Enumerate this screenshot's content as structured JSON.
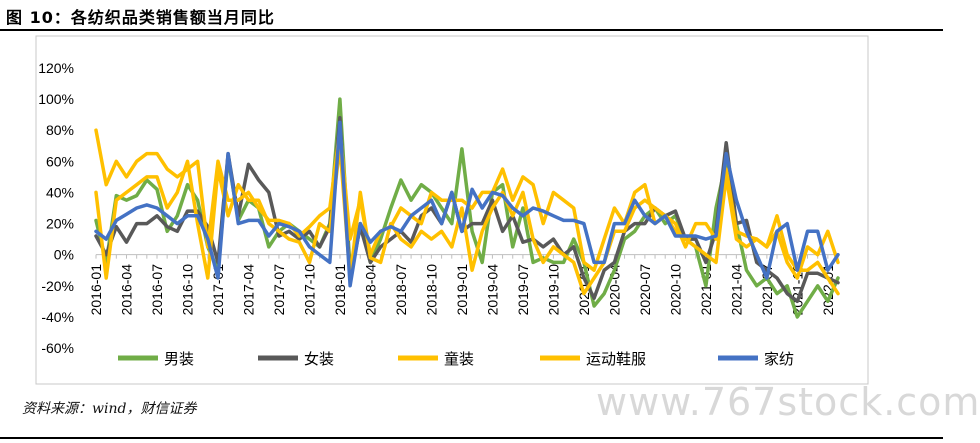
{
  "page": {
    "title": "图 10：各纺织品类销售额当月同比",
    "source": "资料来源：wind，财信证券",
    "watermark": "www.767stock.com"
  },
  "chart_data": {
    "type": "line",
    "title": "",
    "xlabel": "",
    "ylabel": "",
    "ylim": [
      -60,
      120
    ],
    "y_ticks": [
      -60,
      -40,
      -20,
      0,
      20,
      40,
      60,
      80,
      100,
      120
    ],
    "y_tick_labels": [
      "-60%",
      "-40%",
      "-20%",
      "0%",
      "20%",
      "40%",
      "60%",
      "80%",
      "100%",
      "120%"
    ],
    "x": [
      "2016-01",
      "2016-02",
      "2016-03",
      "2016-04",
      "2016-05",
      "2016-06",
      "2016-07",
      "2016-08",
      "2016-09",
      "2016-10",
      "2016-11",
      "2016-12",
      "2017-01",
      "2017-02",
      "2017-03",
      "2017-04",
      "2017-05",
      "2017-06",
      "2017-07",
      "2017-08",
      "2017-09",
      "2017-10",
      "2017-11",
      "2017-12",
      "2018-01",
      "2018-02",
      "2018-03",
      "2018-04",
      "2018-05",
      "2018-06",
      "2018-07",
      "2018-08",
      "2018-09",
      "2018-10",
      "2018-11",
      "2018-12",
      "2019-01",
      "2019-02",
      "2019-03",
      "2019-04",
      "2019-05",
      "2019-06",
      "2019-07",
      "2019-08",
      "2019-09",
      "2019-10",
      "2019-11",
      "2019-12",
      "2020-01",
      "2020-02",
      "2020-03",
      "2020-04",
      "2020-05",
      "2020-06",
      "2020-07",
      "2020-08",
      "2020-09",
      "2020-10",
      "2020-11",
      "2020-12",
      "2021-01",
      "2021-02",
      "2021-03",
      "2021-04",
      "2021-05",
      "2021-06",
      "2021-07",
      "2021-08",
      "2021-09",
      "2021-10",
      "2021-11",
      "2021-12",
      "2022-01",
      "2022-02"
    ],
    "x_tick_labels": [
      "2016-01",
      "2016-04",
      "2016-07",
      "2016-10",
      "2017-01",
      "2017-04",
      "2017-07",
      "2017-10",
      "2018-01",
      "2018-04",
      "2018-07",
      "2018-10",
      "2019-01",
      "2019-04",
      "2019-07",
      "2019-10",
      "2020-01",
      "2020-04",
      "2020-07",
      "2020-10",
      "2021-01",
      "2021-04",
      "2021-07",
      "2021-10",
      "2022-01"
    ],
    "legend_position": "bottom",
    "grid": false,
    "series": [
      {
        "name": "男装",
        "color": "#70ad47",
        "values": [
          22,
          -5,
          38,
          35,
          38,
          48,
          42,
          15,
          25,
          45,
          35,
          5,
          -10,
          62,
          22,
          35,
          30,
          5,
          15,
          20,
          15,
          10,
          5,
          20,
          100,
          -10,
          20,
          -5,
          10,
          30,
          48,
          35,
          45,
          40,
          30,
          20,
          68,
          15,
          -5,
          40,
          45,
          5,
          30,
          -5,
          -2,
          -5,
          -5,
          10,
          -5,
          -33,
          -25,
          -10,
          10,
          15,
          25,
          30,
          20,
          25,
          10,
          5,
          -20,
          30,
          60,
          20,
          -10,
          -20,
          -15,
          -25,
          -20,
          -40,
          -30,
          -20,
          -30,
          -15
        ]
      },
      {
        "name": "女装",
        "color": "#595959",
        "values": [
          12,
          0,
          18,
          8,
          20,
          20,
          25,
          18,
          15,
          28,
          28,
          18,
          -5,
          65,
          25,
          58,
          48,
          40,
          12,
          15,
          10,
          15,
          5,
          18,
          88,
          -15,
          18,
          -5,
          5,
          10,
          15,
          8,
          25,
          30,
          20,
          40,
          15,
          20,
          20,
          35,
          15,
          25,
          8,
          10,
          5,
          10,
          0,
          5,
          -15,
          -28,
          -10,
          -5,
          15,
          20,
          20,
          30,
          25,
          28,
          10,
          10,
          -5,
          15,
          72,
          20,
          22,
          -5,
          -10,
          -15,
          -25,
          -30,
          -12,
          -12,
          -15,
          -18
        ]
      },
      {
        "name": "童装",
        "color": "#ffc000",
        "values": [
          40,
          -15,
          35,
          40,
          45,
          50,
          50,
          30,
          40,
          60,
          20,
          -15,
          55,
          25,
          45,
          35,
          35,
          20,
          15,
          10,
          8,
          -5,
          20,
          15,
          70,
          -15,
          40,
          -2,
          -5,
          20,
          10,
          5,
          15,
          10,
          15,
          5,
          30,
          -10,
          15,
          30,
          40,
          25,
          40,
          10,
          -5,
          5,
          0,
          -5,
          -25,
          -15,
          -5,
          15,
          15,
          30,
          35,
          30,
          25,
          15,
          10,
          5,
          0,
          -5,
          50,
          10,
          5,
          10,
          5,
          25,
          0,
          -10,
          -10,
          -5,
          -15,
          -25
        ]
      },
      {
        "name": "运动鞋服",
        "color": "#ffc000",
        "values": [
          80,
          45,
          60,
          50,
          60,
          65,
          65,
          55,
          50,
          55,
          60,
          5,
          60,
          35,
          35,
          40,
          30,
          22,
          22,
          20,
          12,
          18,
          25,
          30,
          80,
          10,
          35,
          0,
          15,
          18,
          30,
          25,
          20,
          40,
          35,
          35,
          35,
          30,
          40,
          40,
          55,
          35,
          50,
          45,
          20,
          40,
          35,
          30,
          -5,
          -10,
          10,
          30,
          20,
          40,
          45,
          20,
          25,
          20,
          5,
          20,
          20,
          10,
          55,
          15,
          12,
          10,
          5,
          15,
          -5,
          -15,
          5,
          0,
          15,
          -5
        ]
      },
      {
        "name": "家纺",
        "color": "#4472c4",
        "values": [
          15,
          10,
          22,
          26,
          30,
          32,
          30,
          25,
          20,
          25,
          25,
          10,
          -15,
          65,
          20,
          22,
          22,
          12,
          20,
          18,
          15,
          5,
          0,
          -5,
          85,
          -20,
          20,
          8,
          15,
          18,
          15,
          25,
          30,
          35,
          20,
          40,
          15,
          42,
          30,
          40,
          38,
          30,
          25,
          30,
          28,
          25,
          22,
          22,
          20,
          -5,
          -5,
          20,
          20,
          35,
          25,
          20,
          25,
          12,
          12,
          12,
          10,
          12,
          65,
          35,
          15,
          0,
          -15,
          15,
          20,
          -10,
          15,
          15,
          -10,
          0
        ]
      }
    ]
  }
}
